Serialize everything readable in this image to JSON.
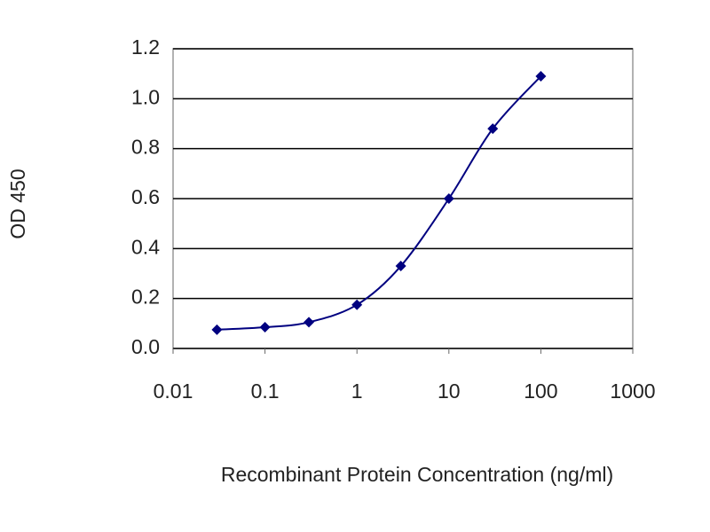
{
  "chart_data": {
    "type": "line",
    "x_label": "Recombinant Protein Concentration (ng/ml)",
    "y_label": "OD 450",
    "x": [
      0.03,
      0.1,
      0.3,
      1,
      3,
      10,
      30,
      100
    ],
    "series": [
      {
        "color": "#000080",
        "values": [
          0.075,
          0.085,
          0.105,
          0.175,
          0.33,
          0.6,
          0.88,
          1.09
        ]
      }
    ],
    "xscale": "log",
    "xlim": [
      0.01,
      1000
    ],
    "xticks": [
      0.01,
      0.1,
      1,
      10,
      100,
      1000
    ],
    "ylim": [
      0,
      1.2
    ],
    "yticks": [
      {
        "value": 0,
        "label": "0.0"
      },
      0.2,
      0.4,
      0.6,
      0.8,
      {
        "value": 1,
        "label": "1.0"
      },
      1.2
    ],
    "grid": true
  }
}
